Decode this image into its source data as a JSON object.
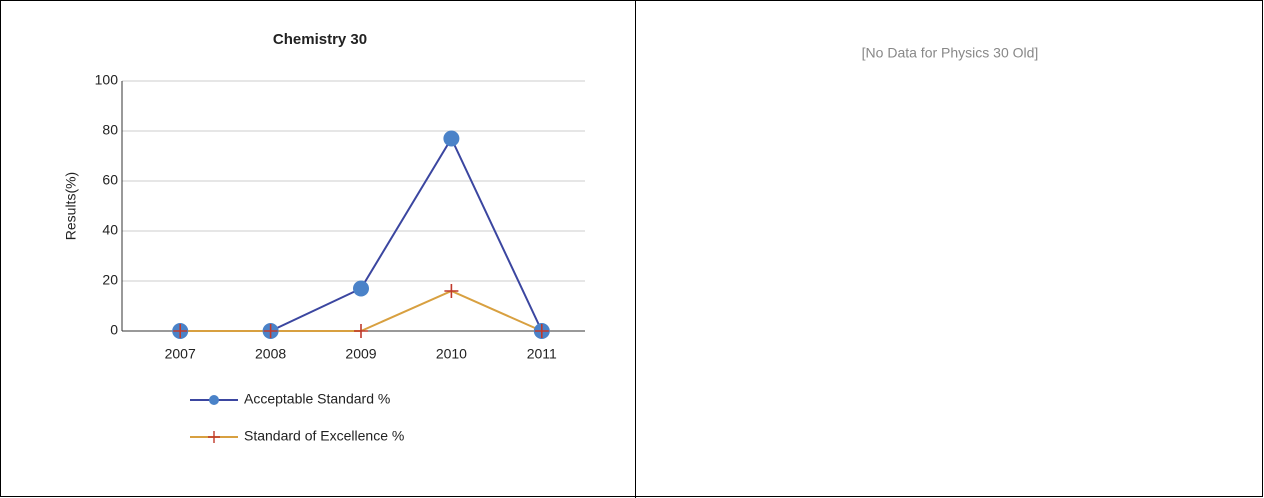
{
  "chart_data": {
    "type": "line",
    "title": "Chemistry 30",
    "y_label": "Results(%)",
    "categories": [
      "2007",
      "2008",
      "2009",
      "2010",
      "2011"
    ],
    "series": [
      {
        "name": "Acceptable Standard %",
        "color": "#3b46a0",
        "marker_color": "#4a82c8",
        "marker": "circle",
        "values": [
          0,
          0,
          17,
          77,
          0
        ]
      },
      {
        "name": "Standard of Excellence %",
        "color": "#d8a040",
        "marker_color": "#c0392b",
        "marker": "plus",
        "values": [
          0,
          0,
          0,
          16,
          0
        ]
      }
    ],
    "ylim": [
      0,
      100
    ],
    "yticks": [
      0,
      20,
      40,
      60,
      80,
      100
    ],
    "grid": true
  },
  "right_panel": {
    "message": "[No Data for Physics 30 Old]"
  }
}
